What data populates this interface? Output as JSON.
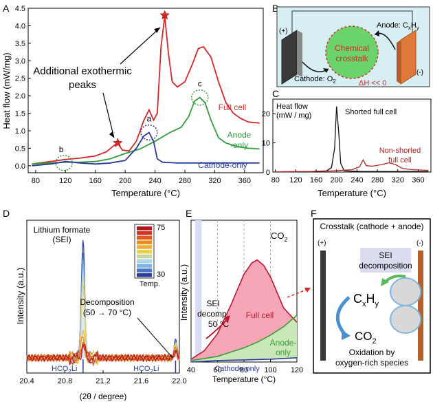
{
  "panel_labels": {
    "A": "A",
    "B": "B",
    "C": "C",
    "D": "D",
    "E": "E",
    "F": "F"
  },
  "chart_data": [
    {
      "id": "A",
      "type": "line",
      "xlabel": "Temperature (°C)",
      "ylabel": "Heat flow (mW/mg)",
      "xlim": [
        70,
        385
      ],
      "ylim": [
        -0.2,
        4.5
      ],
      "xticks": [
        80,
        120,
        160,
        200,
        240,
        280,
        320,
        360
      ],
      "yticks": [
        0.0,
        0.5,
        1.0,
        1.5,
        2.0,
        2.5,
        3.0,
        3.5,
        4.0,
        4.5
      ],
      "series": [
        {
          "name": "Full cell",
          "color": "#d62828",
          "points": [
            [
              75,
              0.05
            ],
            [
              100,
              0.12
            ],
            [
              120,
              0.18
            ],
            [
              140,
              0.22
            ],
            [
              160,
              0.28
            ],
            [
              175,
              0.4
            ],
            [
              185,
              0.58
            ],
            [
              190,
              0.65
            ],
            [
              196,
              0.45
            ],
            [
              205,
              0.42
            ],
            [
              215,
              0.7
            ],
            [
              225,
              1.3
            ],
            [
              232,
              1.6
            ],
            [
              238,
              1.3
            ],
            [
              243,
              1.5
            ],
            [
              248,
              3.4
            ],
            [
              253,
              4.28
            ],
            [
              258,
              3.2
            ],
            [
              263,
              2.4
            ],
            [
              270,
              2.25
            ],
            [
              280,
              2.4
            ],
            [
              290,
              2.9
            ],
            [
              298,
              3.35
            ],
            [
              305,
              3.4
            ],
            [
              315,
              3.1
            ],
            [
              325,
              2.4
            ],
            [
              335,
              1.8
            ],
            [
              345,
              1.5
            ],
            [
              355,
              1.35
            ],
            [
              365,
              1.25
            ],
            [
              380,
              1.22
            ]
          ]
        },
        {
          "name": "Anode-only",
          "color": "#2e9e3a",
          "points": [
            [
              75,
              0.05
            ],
            [
              100,
              0.08
            ],
            [
              120,
              0.1
            ],
            [
              140,
              0.1
            ],
            [
              160,
              0.12
            ],
            [
              180,
              0.2
            ],
            [
              200,
              0.35
            ],
            [
              220,
              0.48
            ],
            [
              240,
              0.7
            ],
            [
              260,
              0.95
            ],
            [
              275,
              1.1
            ],
            [
              285,
              1.4
            ],
            [
              293,
              1.85
            ],
            [
              300,
              1.95
            ],
            [
              307,
              1.8
            ],
            [
              315,
              1.3
            ],
            [
              325,
              0.8
            ],
            [
              335,
              0.65
            ],
            [
              350,
              0.55
            ],
            [
              365,
              0.5
            ],
            [
              380,
              0.48
            ]
          ]
        },
        {
          "name": "Cathode-only",
          "color": "#2a3a9a",
          "points": [
            [
              75,
              0.0
            ],
            [
              100,
              0.05
            ],
            [
              120,
              0.12
            ],
            [
              140,
              0.08
            ],
            [
              160,
              0.05
            ],
            [
              180,
              0.08
            ],
            [
              200,
              0.15
            ],
            [
              215,
              0.5
            ],
            [
              225,
              0.85
            ],
            [
              232,
              0.95
            ],
            [
              238,
              0.7
            ],
            [
              243,
              0.2
            ],
            [
              250,
              0.1
            ],
            [
              270,
              0.08
            ],
            [
              300,
              0.08
            ],
            [
              340,
              0.08
            ],
            [
              380,
              0.08
            ]
          ]
        }
      ],
      "annotations": {
        "title": "Additional exothermic",
        "title2": "peaks",
        "a": "a",
        "b": "b",
        "c": "c"
      },
      "markers": [
        [
          190,
          0.65
        ],
        [
          253,
          4.3
        ]
      ],
      "circles": [
        {
          "label": "a",
          "x": 232,
          "y": 0.95
        },
        {
          "label": "b",
          "x": 118,
          "y": 0.08
        },
        {
          "label": "c",
          "x": 300,
          "y": 1.95
        }
      ]
    },
    {
      "id": "C",
      "type": "line",
      "xlabel": "Temperature (°C)",
      "ylabel": "Heat flow",
      "ylabel2": "(mW / mg)",
      "xlim": [
        75,
        385
      ],
      "ylim": [
        0,
        25
      ],
      "xticks": [
        80,
        120,
        160,
        200,
        240,
        280,
        320,
        360
      ],
      "yticks": [
        0,
        10,
        20
      ],
      "series": [
        {
          "name": "Shorted full cell",
          "color": "#111111",
          "points": [
            [
              80,
              0.1
            ],
            [
              150,
              0.2
            ],
            [
              180,
              0.4
            ],
            [
              190,
              1.5
            ],
            [
              196,
              8
            ],
            [
              200,
              22.5
            ],
            [
              204,
              14
            ],
            [
              208,
              3
            ],
            [
              215,
              0.4
            ],
            [
              250,
              0.2
            ],
            [
              380,
              0.2
            ]
          ]
        },
        {
          "name": "Non-shorted",
          "name2": "full cell",
          "color": "#b22222",
          "points": [
            [
              80,
              0.1
            ],
            [
              150,
              0.2
            ],
            [
              190,
              0.4
            ],
            [
              210,
              0.6
            ],
            [
              230,
              0.8
            ],
            [
              245,
              1.8
            ],
            [
              252,
              4.2
            ],
            [
              258,
              2.2
            ],
            [
              270,
              2.0
            ],
            [
              290,
              2.6
            ],
            [
              303,
              3.2
            ],
            [
              315,
              2.6
            ],
            [
              330,
              1.2
            ],
            [
              350,
              0.8
            ],
            [
              380,
              0.6
            ]
          ]
        }
      ]
    },
    {
      "id": "D",
      "type": "line",
      "xlabel": "(2θ / degree)",
      "ylabel": "Intensity (a.u.)",
      "xlim": [
        20.4,
        22.0
      ],
      "xticks": [
        20.4,
        20.8,
        21.2,
        21.6,
        22.0
      ],
      "xticklabels": [
        "20.4",
        "20.8",
        "21.2",
        "21.6",
        "22.0"
      ],
      "title": "Lithium formate",
      "subtitle": "(SEI)",
      "legend_title": "Temp.",
      "legend_max": "75",
      "legend_min": "30",
      "decomp_label": "Decomposition",
      "decomp_range": "(50 → 70 °C)",
      "ref_label1": "HCO",
      "ref_label2": "HCO",
      "ref_sub": "2",
      "ref_tail": "Li",
      "colors": [
        "#2c3e9c",
        "#4a78c8",
        "#7fb5e0",
        "#a8d8ec",
        "#c9d4a0",
        "#e8d050",
        "#f0b030",
        "#ee8a20",
        "#e05a1a",
        "#d03020",
        "#b01818"
      ]
    },
    {
      "id": "E",
      "type": "area",
      "xlabel": "Temperature (°C)",
      "ylabel": "Intensity (a.u.)",
      "xlim": [
        40,
        120
      ],
      "xticks": [
        40,
        60,
        80,
        100,
        120
      ],
      "gas": "CO",
      "gas_sub": "2",
      "sei_label1": "SEI",
      "sei_label2": "decomp.",
      "sei_label3": "50 °C",
      "series": [
        {
          "name": "Full cell",
          "color": "#c0172f",
          "fill": "#f7a6b8",
          "points": [
            [
              40,
              0.02
            ],
            [
              50,
              0.08
            ],
            [
              60,
              0.2
            ],
            [
              70,
              0.4
            ],
            [
              80,
              0.62
            ],
            [
              86,
              0.7
            ],
            [
              90,
              0.72
            ],
            [
              95,
              0.68
            ],
            [
              100,
              0.6
            ],
            [
              110,
              0.38
            ],
            [
              120,
              0.28
            ]
          ]
        },
        {
          "name": "Anode-",
          "name2": "only",
          "color": "#3a9a3a",
          "fill": "#c8e8b8",
          "points": [
            [
              40,
              0.01
            ],
            [
              60,
              0.04
            ],
            [
              80,
              0.1
            ],
            [
              90,
              0.14
            ],
            [
              100,
              0.19
            ],
            [
              110,
              0.25
            ],
            [
              120,
              0.33
            ]
          ]
        },
        {
          "name": "Cathode-only",
          "color": "#2a3a9a",
          "points": [
            [
              40,
              0.0
            ],
            [
              60,
              0.01
            ],
            [
              80,
              0.015
            ],
            [
              100,
              0.02
            ],
            [
              120,
              0.03
            ]
          ]
        }
      ]
    }
  ],
  "panel_B": {
    "plus": "(+)",
    "minus": "(-)",
    "center1": "Chemical",
    "center2": "crosstalk",
    "anode": "Anode: C",
    "anode_x": "x",
    "anode_h": "H",
    "anode_y": "y",
    "cathode": "Cathode: O",
    "cathode_sub": "2",
    "dh": "ΔH << 0"
  },
  "panel_F": {
    "title": "Crosstalk (cathode + anode)",
    "plus": "(+)",
    "minus": "(-)",
    "sei1": "SEI",
    "sei2": "decomposition",
    "cxhy": "C",
    "cxhy_x": "x",
    "cxhy_h": "H",
    "cxhy_y": "y",
    "co2": "CO",
    "co2_sub": "2",
    "ox1": "Oxidation by",
    "ox2": "oxygen-rich species"
  }
}
